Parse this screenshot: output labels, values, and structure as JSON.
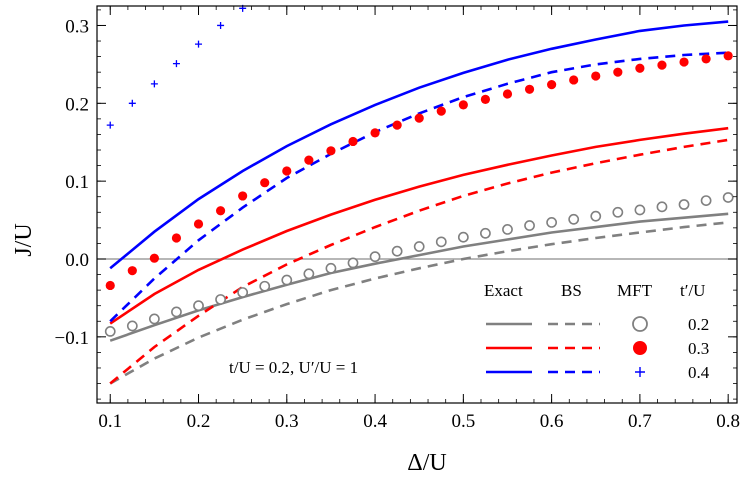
{
  "chart_data": {
    "type": "line",
    "xlabel": "Δ/U",
    "ylabel": "J/U",
    "xlim": [
      0.085,
      0.81
    ],
    "ylim": [
      -0.185,
      0.325
    ],
    "x_ticks": [
      0.1,
      0.2,
      0.3,
      0.4,
      0.5,
      0.6,
      0.7,
      0.8
    ],
    "x_tick_labels": [
      "0.1",
      "0.2",
      "0.3",
      "0.4",
      "0.5",
      "0.6",
      "0.7",
      "0.8"
    ],
    "y_ticks": [
      -0.1,
      0.0,
      0.1,
      0.2,
      0.3
    ],
    "y_tick_labels": [
      "−0.1",
      "0.0",
      "0.1",
      "0.2",
      "0.3"
    ],
    "annotation": "t/U = 0.2, U′/U = 1",
    "legend": {
      "position": "bottom-right",
      "headers": {
        "exact": "Exact",
        "bs": "BS",
        "mft": "MFT",
        "param": "t′/U"
      },
      "rows": [
        {
          "value": "0.2",
          "color": "#808080",
          "marker": "open-circle"
        },
        {
          "value": "0.3",
          "color": "#ff0000",
          "marker": "filled-circle"
        },
        {
          "value": "0.4",
          "color": "#0000ff",
          "marker": "plus"
        }
      ]
    },
    "curves": [
      {
        "group": "0.2",
        "method": "Exact",
        "style": "solid",
        "color": "#808080",
        "x": [
          0.1,
          0.15,
          0.2,
          0.25,
          0.3,
          0.35,
          0.4,
          0.45,
          0.5,
          0.55,
          0.6,
          0.65,
          0.7,
          0.75,
          0.8
        ],
        "y": [
          -0.105,
          -0.085,
          -0.066,
          -0.049,
          -0.033,
          -0.018,
          -0.006,
          0.005,
          0.016,
          0.025,
          0.034,
          0.041,
          0.048,
          0.053,
          0.058
        ]
      },
      {
        "group": "0.2",
        "method": "BS",
        "style": "dashed",
        "color": "#808080",
        "x": [
          0.1,
          0.15,
          0.2,
          0.25,
          0.3,
          0.35,
          0.4,
          0.45,
          0.5,
          0.55,
          0.6,
          0.65,
          0.7,
          0.75,
          0.8
        ],
        "y": [
          -0.16,
          -0.128,
          -0.101,
          -0.078,
          -0.058,
          -0.04,
          -0.025,
          -0.012,
          0.0,
          0.01,
          0.019,
          0.027,
          0.034,
          0.041,
          0.047
        ]
      },
      {
        "group": "0.3",
        "method": "Exact",
        "style": "solid",
        "color": "#ff0000",
        "x": [
          0.1,
          0.15,
          0.2,
          0.25,
          0.3,
          0.35,
          0.4,
          0.45,
          0.5,
          0.55,
          0.6,
          0.65,
          0.7,
          0.75,
          0.8
        ],
        "y": [
          -0.083,
          -0.045,
          -0.014,
          0.012,
          0.036,
          0.057,
          0.076,
          0.093,
          0.108,
          0.121,
          0.133,
          0.144,
          0.153,
          0.161,
          0.168
        ]
      },
      {
        "group": "0.3",
        "method": "BS",
        "style": "dashed",
        "color": "#ff0000",
        "x": [
          0.1,
          0.15,
          0.2,
          0.25,
          0.3,
          0.35,
          0.4,
          0.45,
          0.5,
          0.55,
          0.6,
          0.65,
          0.7,
          0.75,
          0.8
        ],
        "y": [
          -0.16,
          -0.113,
          -0.073,
          -0.036,
          -0.007,
          0.018,
          0.041,
          0.062,
          0.081,
          0.097,
          0.111,
          0.123,
          0.134,
          0.144,
          0.153
        ]
      },
      {
        "group": "0.4",
        "method": "Exact",
        "style": "solid",
        "color": "#0000ff",
        "x": [
          0.1,
          0.15,
          0.2,
          0.25,
          0.3,
          0.35,
          0.4,
          0.45,
          0.5,
          0.55,
          0.6,
          0.65,
          0.7,
          0.75,
          0.8
        ],
        "y": [
          -0.012,
          0.035,
          0.077,
          0.113,
          0.145,
          0.173,
          0.198,
          0.22,
          0.239,
          0.256,
          0.27,
          0.282,
          0.293,
          0.3,
          0.305
        ]
      },
      {
        "group": "0.4",
        "method": "BS",
        "style": "dashed",
        "color": "#0000ff",
        "x": [
          0.1,
          0.15,
          0.2,
          0.25,
          0.3,
          0.35,
          0.4,
          0.45,
          0.5,
          0.55,
          0.6,
          0.65,
          0.7,
          0.75,
          0.8
        ],
        "y": [
          -0.08,
          -0.025,
          0.024,
          0.066,
          0.104,
          0.135,
          0.163,
          0.187,
          0.208,
          0.225,
          0.24,
          0.25,
          0.257,
          0.262,
          0.265
        ]
      }
    ],
    "markers": [
      {
        "group": "0.2",
        "method": "MFT",
        "marker": "open-circle",
        "color": "#808080",
        "x": [
          0.1,
          0.125,
          0.15,
          0.175,
          0.2,
          0.225,
          0.25,
          0.275,
          0.3,
          0.325,
          0.35,
          0.375,
          0.4,
          0.425,
          0.45,
          0.475,
          0.5,
          0.525,
          0.55,
          0.575,
          0.6,
          0.625,
          0.65,
          0.675,
          0.7,
          0.725,
          0.75,
          0.775,
          0.8
        ],
        "y": [
          -0.093,
          -0.086,
          -0.077,
          -0.068,
          -0.06,
          -0.052,
          -0.043,
          -0.035,
          -0.027,
          -0.019,
          -0.012,
          -0.005,
          0.003,
          0.01,
          0.016,
          0.022,
          0.028,
          0.033,
          0.038,
          0.043,
          0.047,
          0.051,
          0.055,
          0.06,
          0.063,
          0.067,
          0.07,
          0.075,
          0.079
        ]
      },
      {
        "group": "0.3",
        "method": "MFT",
        "marker": "filled-circle",
        "color": "#ff0000",
        "x": [
          0.1,
          0.125,
          0.15,
          0.175,
          0.2,
          0.225,
          0.25,
          0.275,
          0.3,
          0.325,
          0.35,
          0.375,
          0.4,
          0.425,
          0.45,
          0.475,
          0.5,
          0.525,
          0.55,
          0.575,
          0.6,
          0.625,
          0.65,
          0.675,
          0.7,
          0.725,
          0.75,
          0.775,
          0.8
        ],
        "y": [
          -0.034,
          -0.015,
          0.001,
          0.027,
          0.045,
          0.062,
          0.081,
          0.098,
          0.113,
          0.127,
          0.139,
          0.151,
          0.162,
          0.172,
          0.181,
          0.19,
          0.198,
          0.205,
          0.212,
          0.218,
          0.224,
          0.23,
          0.235,
          0.24,
          0.245,
          0.249,
          0.253,
          0.257,
          0.261
        ]
      },
      {
        "group": "0.4",
        "method": "MFT",
        "marker": "plus",
        "color": "#0000ff",
        "x": [
          0.1,
          0.125,
          0.15,
          0.175,
          0.2,
          0.225,
          0.25
        ],
        "y": [
          0.172,
          0.2,
          0.225,
          0.251,
          0.276,
          0.3,
          0.322
        ]
      }
    ]
  }
}
